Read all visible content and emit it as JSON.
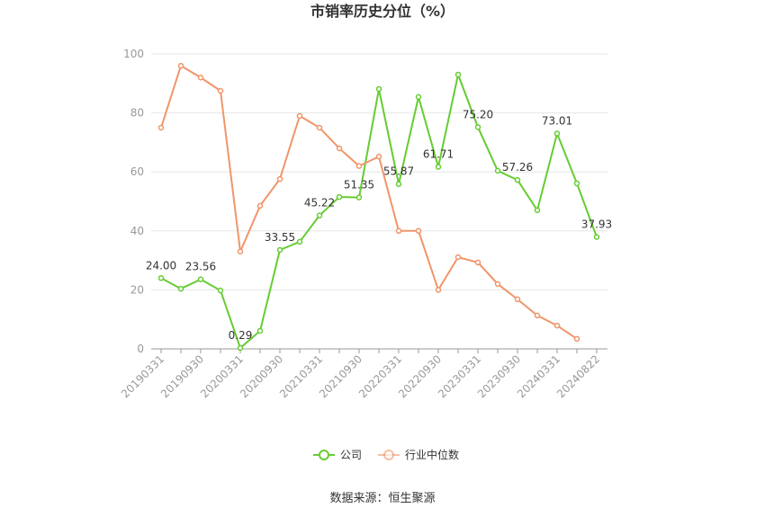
{
  "chart_data": {
    "type": "line",
    "title": "市销率历史分位（%）",
    "categories": [
      "20190331",
      null,
      "20190930",
      null,
      "20200331",
      null,
      "20200930",
      null,
      "20210331",
      null,
      "20210930",
      null,
      "20220331",
      null,
      "20220930",
      null,
      "20230331",
      null,
      "20230930",
      null,
      "20240331",
      null,
      "20240822"
    ],
    "series": [
      {
        "name": "公司",
        "color": "#66cc33",
        "values": [
          24.0,
          20.4,
          23.56,
          19.8,
          0.29,
          6.1,
          33.55,
          36.3,
          45.22,
          51.5,
          51.35,
          88.1,
          55.87,
          85.4,
          61.71,
          93.0,
          75.2,
          60.4,
          57.26,
          47.0,
          73.01,
          56.1,
          37.93
        ],
        "value_labels": [
          "24.00",
          null,
          "23.56",
          null,
          "0.29",
          null,
          "33.55",
          null,
          "45.22",
          null,
          "51.35",
          null,
          "55.87",
          null,
          "61.71",
          null,
          "75.20",
          null,
          "57.26",
          null,
          "73.01",
          null,
          "37.93"
        ]
      },
      {
        "name": "行业中位数",
        "color": "#f0956a",
        "values": [
          75.0,
          96.0,
          92.0,
          87.5,
          33.0,
          48.5,
          57.6,
          79.0,
          75.0,
          68.0,
          62.0,
          65.2,
          40.0,
          40.0,
          20.0,
          31.1,
          29.3,
          22.0,
          16.8,
          11.3,
          7.9,
          3.4,
          null
        ]
      }
    ],
    "ylim": [
      0,
      100
    ],
    "yticks": [
      0,
      20,
      40,
      60,
      80,
      100
    ],
    "grid": true,
    "legend": "bottom",
    "source": "数据来源：恒生聚源"
  }
}
